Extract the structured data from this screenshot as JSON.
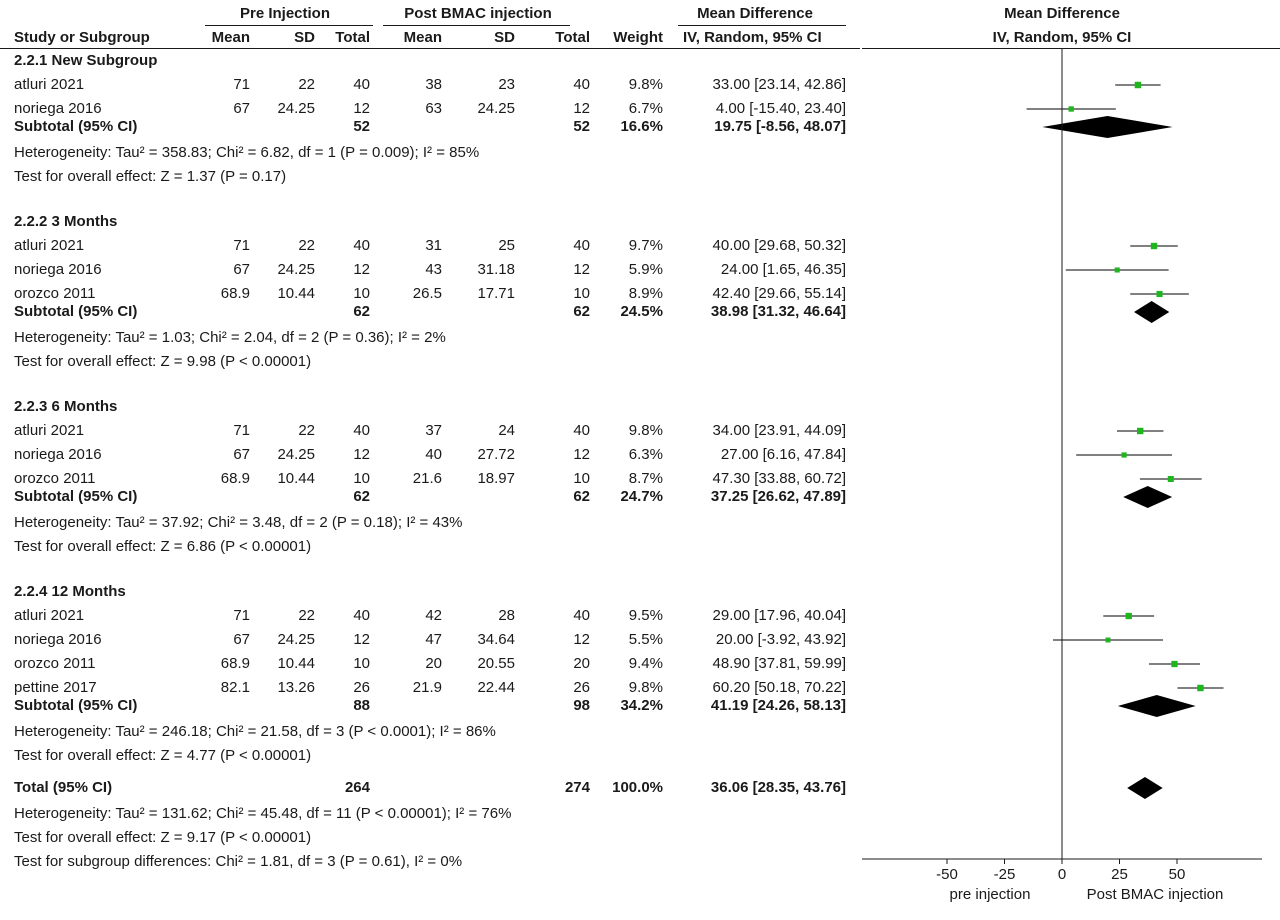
{
  "header": {
    "group1": "Pre Injection",
    "group2": "Post BMAC injection",
    "md_label": "Mean Difference",
    "study_col": "Study or Subgroup",
    "mean": "Mean",
    "sd": "SD",
    "total": "Total",
    "weight": "Weight",
    "method": "IV, Random, 95% CI",
    "plot_title": "Mean Difference",
    "plot_method": "IV, Random, 95% CI"
  },
  "chart_data": {
    "type": "forest",
    "xlim": [
      -70,
      70
    ],
    "xticks": [
      "-50",
      "-25",
      "0",
      "25",
      "50"
    ],
    "xtick_values": [
      -50,
      -25,
      0,
      25,
      50
    ],
    "left_label": "pre injection",
    "right_label": "Post BMAC injection",
    "colors": {
      "square": "#1fb51f",
      "diamond": "#000000",
      "ci_line": "#000000"
    },
    "subgroups": [
      {
        "name": "2.2.1 New Subgroup",
        "studies": [
          {
            "name": "atluri 2021",
            "m1": "71",
            "sd1": "22",
            "n1": "40",
            "m2": "38",
            "sd2": "23",
            "n2": "40",
            "weight": "9.8%",
            "ci": "33.00 [23.14, 42.86]",
            "md": 33.0,
            "lo": 23.14,
            "hi": 42.86
          },
          {
            "name": "noriega 2016",
            "m1": "67",
            "sd1": "24.25",
            "n1": "12",
            "m2": "63",
            "sd2": "24.25",
            "n2": "12",
            "weight": "6.7%",
            "ci": "4.00 [-15.40, 23.40]",
            "md": 4.0,
            "lo": -15.4,
            "hi": 23.4
          }
        ],
        "subtotal": {
          "label": "Subtotal (95% CI)",
          "n1": "52",
          "n2": "52",
          "weight": "16.6%",
          "ci": "19.75 [-8.56, 48.07]",
          "md": 19.75,
          "lo": -8.56,
          "hi": 48.07
        },
        "heterogeneity": "Heterogeneity: Tau² = 358.83; Chi² = 6.82, df = 1 (P = 0.009); I² = 85%",
        "overall": "Test for overall effect: Z = 1.37 (P = 0.17)"
      },
      {
        "name": "2.2.2 3 Months",
        "studies": [
          {
            "name": "atluri 2021",
            "m1": "71",
            "sd1": "22",
            "n1": "40",
            "m2": "31",
            "sd2": "25",
            "n2": "40",
            "weight": "9.7%",
            "ci": "40.00 [29.68, 50.32]",
            "md": 40.0,
            "lo": 29.68,
            "hi": 50.32
          },
          {
            "name": "noriega 2016",
            "m1": "67",
            "sd1": "24.25",
            "n1": "12",
            "m2": "43",
            "sd2": "31.18",
            "n2": "12",
            "weight": "5.9%",
            "ci": "24.00 [1.65, 46.35]",
            "md": 24.0,
            "lo": 1.65,
            "hi": 46.35
          },
          {
            "name": "orozco 2011",
            "m1": "68.9",
            "sd1": "10.44",
            "n1": "10",
            "m2": "26.5",
            "sd2": "17.71",
            "n2": "10",
            "weight": "8.9%",
            "ci": "42.40 [29.66, 55.14]",
            "md": 42.4,
            "lo": 29.66,
            "hi": 55.14
          }
        ],
        "subtotal": {
          "label": "Subtotal (95% CI)",
          "n1": "62",
          "n2": "62",
          "weight": "24.5%",
          "ci": "38.98 [31.32, 46.64]",
          "md": 38.98,
          "lo": 31.32,
          "hi": 46.64
        },
        "heterogeneity": "Heterogeneity: Tau² = 1.03; Chi² = 2.04, df = 2 (P = 0.36); I² = 2%",
        "overall": "Test for overall effect: Z = 9.98 (P < 0.00001)"
      },
      {
        "name": "2.2.3 6 Months",
        "studies": [
          {
            "name": "atluri 2021",
            "m1": "71",
            "sd1": "22",
            "n1": "40",
            "m2": "37",
            "sd2": "24",
            "n2": "40",
            "weight": "9.8%",
            "ci": "34.00 [23.91, 44.09]",
            "md": 34.0,
            "lo": 23.91,
            "hi": 44.09
          },
          {
            "name": "noriega 2016",
            "m1": "67",
            "sd1": "24.25",
            "n1": "12",
            "m2": "40",
            "sd2": "27.72",
            "n2": "12",
            "weight": "6.3%",
            "ci": "27.00 [6.16, 47.84]",
            "md": 27.0,
            "lo": 6.16,
            "hi": 47.84
          },
          {
            "name": "orozco 2011",
            "m1": "68.9",
            "sd1": "10.44",
            "n1": "10",
            "m2": "21.6",
            "sd2": "18.97",
            "n2": "10",
            "weight": "8.7%",
            "ci": "47.30 [33.88, 60.72]",
            "md": 47.3,
            "lo": 33.88,
            "hi": 60.72
          }
        ],
        "subtotal": {
          "label": "Subtotal (95% CI)",
          "n1": "62",
          "n2": "62",
          "weight": "24.7%",
          "ci": "37.25 [26.62, 47.89]",
          "md": 37.25,
          "lo": 26.62,
          "hi": 47.89
        },
        "heterogeneity": "Heterogeneity: Tau² = 37.92; Chi² = 3.48, df = 2 (P = 0.18); I² = 43%",
        "overall": "Test for overall effect: Z = 6.86 (P < 0.00001)"
      },
      {
        "name": "2.2.4 12 Months",
        "studies": [
          {
            "name": "atluri 2021",
            "m1": "71",
            "sd1": "22",
            "n1": "40",
            "m2": "42",
            "sd2": "28",
            "n2": "40",
            "weight": "9.5%",
            "ci": "29.00 [17.96, 40.04]",
            "md": 29.0,
            "lo": 17.96,
            "hi": 40.04
          },
          {
            "name": "noriega 2016",
            "m1": "67",
            "sd1": "24.25",
            "n1": "12",
            "m2": "47",
            "sd2": "34.64",
            "n2": "12",
            "weight": "5.5%",
            "ci": "20.00 [-3.92, 43.92]",
            "md": 20.0,
            "lo": -3.92,
            "hi": 43.92
          },
          {
            "name": "orozco 2011",
            "m1": "68.9",
            "sd1": "10.44",
            "n1": "10",
            "m2": "20",
            "sd2": "20.55",
            "n2": "20",
            "weight": "9.4%",
            "ci": "48.90 [37.81, 59.99]",
            "md": 48.9,
            "lo": 37.81,
            "hi": 59.99
          },
          {
            "name": "pettine 2017",
            "m1": "82.1",
            "sd1": "13.26",
            "n1": "26",
            "m2": "21.9",
            "sd2": "22.44",
            "n2": "26",
            "weight": "9.8%",
            "ci": "60.20 [50.18, 70.22]",
            "md": 60.2,
            "lo": 50.18,
            "hi": 70.22
          }
        ],
        "subtotal": {
          "label": "Subtotal (95% CI)",
          "n1": "88",
          "n2": "98",
          "weight": "34.2%",
          "ci": "41.19 [24.26, 58.13]",
          "md": 41.19,
          "lo": 24.26,
          "hi": 58.13
        },
        "heterogeneity": "Heterogeneity: Tau² = 246.18; Chi² = 21.58, df = 3 (P < 0.0001); I² = 86%",
        "overall": "Test for overall effect: Z = 4.77 (P < 0.00001)"
      }
    ],
    "total": {
      "label": "Total (95% CI)",
      "n1": "264",
      "n2": "274",
      "weight": "100.0%",
      "ci": "36.06 [28.35, 43.76]",
      "md": 36.06,
      "lo": 28.35,
      "hi": 43.76
    },
    "footer": [
      "Heterogeneity: Tau² = 131.62; Chi² = 45.48, df = 11 (P < 0.00001); I² = 76%",
      "Test for overall effect: Z = 9.17 (P < 0.00001)",
      "Test for subgroup differences: Chi² = 1.81, df = 3 (P = 0.61), I² = 0%"
    ]
  }
}
